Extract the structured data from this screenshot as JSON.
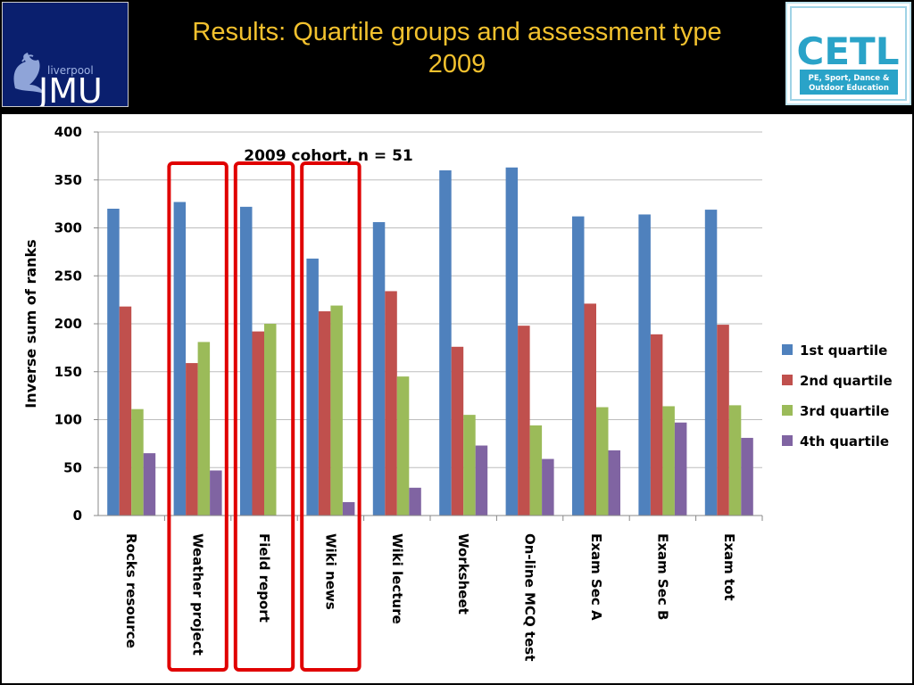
{
  "header": {
    "title_line1": "Results: Quartile groups and assessment type",
    "title_line2": "2009",
    "jmu_logo": {
      "small_text": "liverpool",
      "big_text": "JMU",
      "icon": "liver-bird-icon"
    },
    "cetl_logo": {
      "big_text": "CETL",
      "line1": "PE, Sport, Dance &",
      "line2": "Outdoor Education"
    }
  },
  "chart_data": {
    "type": "bar",
    "title": "2009 cohort, n = 51",
    "xlabel": "",
    "ylabel": "Inverse sum of ranks",
    "ylim": [
      0,
      400
    ],
    "yticks": [
      0,
      50,
      100,
      150,
      200,
      250,
      300,
      350,
      400
    ],
    "grid": true,
    "legend_position": "right",
    "categories": [
      "Rocks resource",
      "Weather project",
      "Field report",
      "Wiki news",
      "Wiki lecture",
      "Worksheet",
      "On-line MCQ test",
      "Exam Sec A",
      "Exam Sec B",
      "Exam tot"
    ],
    "series": [
      {
        "name": "1st quartile",
        "color": "#4f81bd",
        "values": [
          320,
          327,
          322,
          268,
          306,
          360,
          363,
          312,
          314,
          319
        ]
      },
      {
        "name": "2nd quartile",
        "color": "#c0504d",
        "values": [
          218,
          159,
          192,
          213,
          234,
          176,
          198,
          221,
          189,
          199
        ]
      },
      {
        "name": "3rd quartile",
        "color": "#9bbb59",
        "values": [
          111,
          181,
          200,
          219,
          145,
          105,
          94,
          113,
          114,
          115
        ]
      },
      {
        "name": "4th quartile",
        "color": "#8064a2",
        "values": [
          65,
          47,
          0,
          14,
          29,
          73,
          59,
          68,
          97,
          81
        ]
      }
    ],
    "highlighted_categories": [
      "Weather project",
      "Field report",
      "Wiki news"
    ],
    "highlight_color": "#e00000"
  }
}
